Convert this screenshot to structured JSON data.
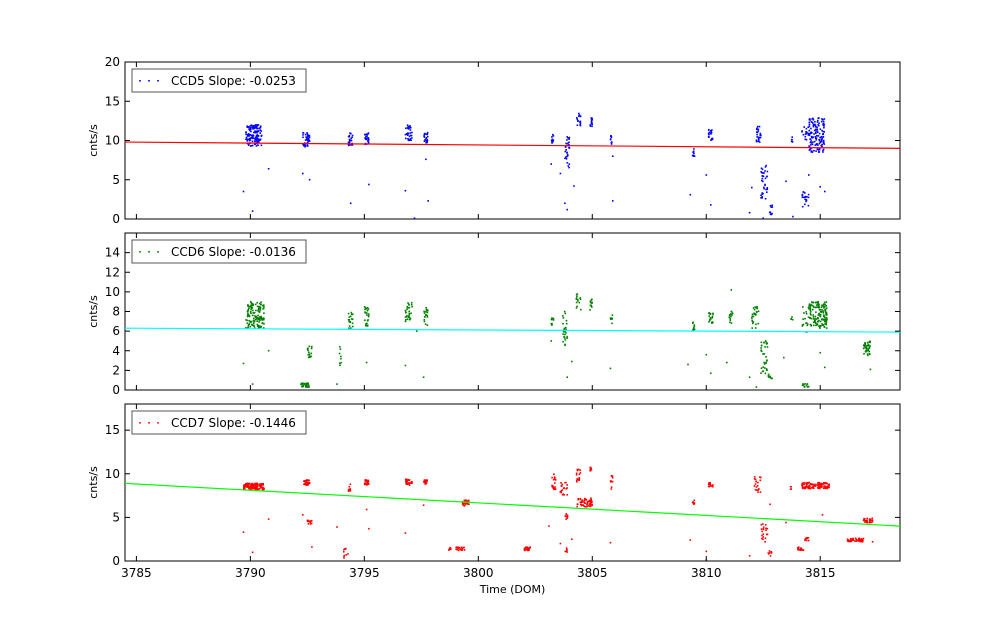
{
  "chart_data": [
    {
      "type": "scatter",
      "name": "ccd5",
      "ylabel": "cnts/s",
      "ylim": [
        0,
        20
      ],
      "yticks": [
        0,
        5,
        10,
        15,
        20
      ],
      "xlim": [
        3784.5,
        3818.5
      ],
      "legend": "CCD5 Slope: -0.0253",
      "legend_position": "top-left",
      "point_color": "#0000ff",
      "fit_color": "#ff0000",
      "fit": {
        "x": [
          3784.5,
          3818.5
        ],
        "y": [
          9.8,
          9.0
        ]
      },
      "clusters": [
        {
          "x": [
            3789.8,
            3790.5
          ],
          "y": [
            9.3,
            12.0
          ],
          "n": 140
        },
        {
          "x": [
            3792.3,
            3792.6
          ],
          "y": [
            9.2,
            11.0
          ],
          "n": 40
        },
        {
          "x": [
            3794.3,
            3794.5
          ],
          "y": [
            9.3,
            11.0
          ],
          "n": 25
        },
        {
          "x": [
            3795.0,
            3795.2
          ],
          "y": [
            9.5,
            11.0
          ],
          "n": 25
        },
        {
          "x": [
            3796.8,
            3797.1
          ],
          "y": [
            10.0,
            12.0
          ],
          "n": 30
        },
        {
          "x": [
            3797.6,
            3797.8
          ],
          "y": [
            9.7,
            11.0
          ],
          "n": 20
        },
        {
          "x": [
            3803.2,
            3803.3
          ],
          "y": [
            9.5,
            11.0
          ],
          "n": 10
        },
        {
          "x": [
            3803.8,
            3804.0
          ],
          "y": [
            6.5,
            10.5
          ],
          "n": 30
        },
        {
          "x": [
            3804.3,
            3804.5
          ],
          "y": [
            11.8,
            13.5
          ],
          "n": 15
        },
        {
          "x": [
            3804.9,
            3805.0
          ],
          "y": [
            11.8,
            13.0
          ],
          "n": 15
        },
        {
          "x": [
            3805.8,
            3805.9
          ],
          "y": [
            9.5,
            10.8
          ],
          "n": 8
        },
        {
          "x": [
            3809.4,
            3809.5
          ],
          "y": [
            7.8,
            9.0
          ],
          "n": 10
        },
        {
          "x": [
            3810.1,
            3810.3
          ],
          "y": [
            10.0,
            11.5
          ],
          "n": 20
        },
        {
          "x": [
            3812.2,
            3812.4
          ],
          "y": [
            9.8,
            12.0
          ],
          "n": 25
        },
        {
          "x": [
            3812.4,
            3812.7
          ],
          "y": [
            2.5,
            7.0
          ],
          "n": 35
        },
        {
          "x": [
            3812.7,
            3812.9
          ],
          "y": [
            0.5,
            1.8
          ],
          "n": 10
        },
        {
          "x": [
            3813.7,
            3813.8
          ],
          "y": [
            9.5,
            10.5
          ],
          "n": 5
        },
        {
          "x": [
            3814.2,
            3814.5
          ],
          "y": [
            1.5,
            3.5
          ],
          "n": 20
        },
        {
          "x": [
            3814.2,
            3814.5
          ],
          "y": [
            10.0,
            12.0
          ],
          "n": 15
        },
        {
          "x": [
            3814.5,
            3815.2
          ],
          "y": [
            8.5,
            13.0
          ],
          "n": 140
        }
      ],
      "outliers": [
        [
          3789.7,
          3.5
        ],
        [
          3790.1,
          1.0
        ],
        [
          3790.8,
          6.4
        ],
        [
          3792.3,
          5.8
        ],
        [
          3792.6,
          5.0
        ],
        [
          3794.4,
          2.0
        ],
        [
          3795.2,
          4.4
        ],
        [
          3796.8,
          3.6
        ],
        [
          3797.2,
          0.1
        ],
        [
          3797.7,
          7.6
        ],
        [
          3797.8,
          2.3
        ],
        [
          3803.2,
          7.0
        ],
        [
          3803.6,
          5.8
        ],
        [
          3803.8,
          2.0
        ],
        [
          3803.9,
          1.2
        ],
        [
          3804.2,
          4.2
        ],
        [
          3805.9,
          8.0
        ],
        [
          3805.9,
          2.3
        ],
        [
          3809.3,
          3.1
        ],
        [
          3810.0,
          5.6
        ],
        [
          3810.2,
          1.8
        ],
        [
          3811.9,
          0.8
        ],
        [
          3812.0,
          4.0
        ],
        [
          3812.5,
          0.1
        ],
        [
          3813.5,
          4.8
        ],
        [
          3813.8,
          0.3
        ],
        [
          3814.5,
          5.6
        ],
        [
          3815.0,
          4.1
        ],
        [
          3815.2,
          3.5
        ]
      ]
    },
    {
      "type": "scatter",
      "name": "ccd6",
      "ylabel": "cnts/s",
      "ylim": [
        0,
        16
      ],
      "yticks": [
        0,
        2,
        4,
        6,
        8,
        10,
        12,
        14
      ],
      "xlim": [
        3784.5,
        3818.5
      ],
      "legend": "CCD6 Slope: -0.0136",
      "legend_position": "top-left",
      "point_color": "#008000",
      "fit_color": "#00ffff",
      "fit": {
        "x": [
          3784.5,
          3818.5
        ],
        "y": [
          6.3,
          5.9
        ]
      },
      "clusters": [
        {
          "x": [
            3789.8,
            3790.6
          ],
          "y": [
            6.3,
            9.0
          ],
          "n": 140
        },
        {
          "x": [
            3792.2,
            3792.6
          ],
          "y": [
            0.3,
            0.7
          ],
          "n": 30
        },
        {
          "x": [
            3792.5,
            3792.7
          ],
          "y": [
            3.3,
            4.5
          ],
          "n": 15
        },
        {
          "x": [
            3793.9,
            3794.0
          ],
          "y": [
            2.5,
            4.5
          ],
          "n": 8
        },
        {
          "x": [
            3794.3,
            3794.5
          ],
          "y": [
            6.3,
            8.0
          ],
          "n": 20
        },
        {
          "x": [
            3795.0,
            3795.2
          ],
          "y": [
            6.5,
            8.5
          ],
          "n": 25
        },
        {
          "x": [
            3796.8,
            3797.1
          ],
          "y": [
            6.8,
            9.0
          ],
          "n": 30
        },
        {
          "x": [
            3797.6,
            3797.8
          ],
          "y": [
            6.5,
            8.5
          ],
          "n": 20
        },
        {
          "x": [
            3803.2,
            3803.3
          ],
          "y": [
            6.0,
            7.5
          ],
          "n": 10
        },
        {
          "x": [
            3803.7,
            3803.9
          ],
          "y": [
            4.5,
            8.0
          ],
          "n": 25
        },
        {
          "x": [
            3804.3,
            3804.5
          ],
          "y": [
            8.0,
            10.0
          ],
          "n": 15
        },
        {
          "x": [
            3804.9,
            3805.0
          ],
          "y": [
            8.0,
            9.3
          ],
          "n": 12
        },
        {
          "x": [
            3805.8,
            3805.9
          ],
          "y": [
            6.5,
            7.8
          ],
          "n": 8
        },
        {
          "x": [
            3809.4,
            3809.5
          ],
          "y": [
            6.0,
            7.5
          ],
          "n": 10
        },
        {
          "x": [
            3810.1,
            3810.3
          ],
          "y": [
            6.8,
            8.0
          ],
          "n": 20
        },
        {
          "x": [
            3811.0,
            3811.2
          ],
          "y": [
            6.8,
            8.0
          ],
          "n": 15
        },
        {
          "x": [
            3812.0,
            3812.3
          ],
          "y": [
            6.3,
            8.5
          ],
          "n": 30
        },
        {
          "x": [
            3812.4,
            3812.7
          ],
          "y": [
            1.5,
            5.0
          ],
          "n": 35
        },
        {
          "x": [
            3812.7,
            3812.9
          ],
          "y": [
            1.0,
            1.6
          ],
          "n": 8
        },
        {
          "x": [
            3813.7,
            3813.8
          ],
          "y": [
            7.0,
            7.5
          ],
          "n": 4
        },
        {
          "x": [
            3814.2,
            3814.5
          ],
          "y": [
            0.3,
            0.7
          ],
          "n": 12
        },
        {
          "x": [
            3814.2,
            3814.5
          ],
          "y": [
            6.5,
            8.5
          ],
          "n": 15
        },
        {
          "x": [
            3814.5,
            3815.3
          ],
          "y": [
            6.3,
            9.0
          ],
          "n": 140
        },
        {
          "x": [
            3816.9,
            3817.2
          ],
          "y": [
            3.5,
            5.0
          ],
          "n": 40
        }
      ],
      "outliers": [
        [
          3789.7,
          2.7
        ],
        [
          3790.1,
          0.6
        ],
        [
          3790.8,
          4.0
        ],
        [
          3793.8,
          0.6
        ],
        [
          3795.1,
          2.8
        ],
        [
          3796.8,
          2.5
        ],
        [
          3797.6,
          1.3
        ],
        [
          3797.3,
          6.0
        ],
        [
          3803.2,
          5.0
        ],
        [
          3803.9,
          1.3
        ],
        [
          3804.1,
          2.9
        ],
        [
          3805.8,
          2.2
        ],
        [
          3809.2,
          2.6
        ],
        [
          3810.0,
          3.6
        ],
        [
          3810.2,
          1.7
        ],
        [
          3810.9,
          2.8
        ],
        [
          3811.1,
          10.2
        ],
        [
          3811.9,
          1.3
        ],
        [
          3812.2,
          0.3
        ],
        [
          3813.4,
          3.3
        ],
        [
          3814.4,
          5.9
        ],
        [
          3815.0,
          3.8
        ],
        [
          3815.2,
          2.3
        ],
        [
          3817.2,
          2.1
        ]
      ]
    },
    {
      "type": "scatter",
      "name": "ccd7",
      "ylabel": "cnts/s",
      "ylim": [
        0,
        18
      ],
      "yticks": [
        0,
        5,
        10,
        15
      ],
      "xlim": [
        3784.5,
        3818.5
      ],
      "xticks": [
        3785,
        3790,
        3795,
        3800,
        3805,
        3810,
        3815
      ],
      "xlabel": "Time (DOM)",
      "legend": "CCD7 Slope: -0.1446",
      "legend_position": "top-left",
      "point_color": "#ff0000",
      "fit_color": "#00ff00",
      "fit": {
        "x": [
          3784.5,
          3818.5
        ],
        "y": [
          8.9,
          4.0
        ]
      },
      "clusters": [
        {
          "x": [
            3789.7,
            3790.6
          ],
          "y": [
            8.2,
            8.9
          ],
          "n": 140
        },
        {
          "x": [
            3792.3,
            3792.6
          ],
          "y": [
            8.7,
            9.3
          ],
          "n": 40
        },
        {
          "x": [
            3792.5,
            3792.7
          ],
          "y": [
            4.2,
            4.7
          ],
          "n": 15
        },
        {
          "x": [
            3794.1,
            3794.3
          ],
          "y": [
            0.2,
            1.5
          ],
          "n": 10
        },
        {
          "x": [
            3794.3,
            3794.4
          ],
          "y": [
            8.0,
            8.8
          ],
          "n": 10
        },
        {
          "x": [
            3795.0,
            3795.2
          ],
          "y": [
            8.7,
            9.3
          ],
          "n": 25
        },
        {
          "x": [
            3796.8,
            3797.1
          ],
          "y": [
            8.7,
            9.4
          ],
          "n": 30
        },
        {
          "x": [
            3797.6,
            3797.8
          ],
          "y": [
            8.8,
            9.3
          ],
          "n": 20
        },
        {
          "x": [
            3798.7,
            3798.8
          ],
          "y": [
            1.2,
            1.6
          ],
          "n": 6
        },
        {
          "x": [
            3799.0,
            3799.4
          ],
          "y": [
            1.2,
            1.6
          ],
          "n": 20
        },
        {
          "x": [
            3799.3,
            3799.6
          ],
          "y": [
            6.3,
            7.0
          ],
          "n": 25
        },
        {
          "x": [
            3802.0,
            3802.3
          ],
          "y": [
            1.2,
            1.6
          ],
          "n": 20
        },
        {
          "x": [
            3803.2,
            3803.4
          ],
          "y": [
            8.0,
            10.0
          ],
          "n": 20
        },
        {
          "x": [
            3803.6,
            3803.9
          ],
          "y": [
            7.5,
            9.0
          ],
          "n": 20
        },
        {
          "x": [
            3803.8,
            3803.9
          ],
          "y": [
            0.5,
            1.5
          ],
          "n": 6
        },
        {
          "x": [
            3803.8,
            3804.0
          ],
          "y": [
            4.8,
            5.5
          ],
          "n": 8
        },
        {
          "x": [
            3804.3,
            3804.5
          ],
          "y": [
            9.0,
            10.5
          ],
          "n": 15
        },
        {
          "x": [
            3804.3,
            3805.0
          ],
          "y": [
            6.2,
            7.2
          ],
          "n": 60
        },
        {
          "x": [
            3804.9,
            3805.0
          ],
          "y": [
            10.2,
            10.8
          ],
          "n": 8
        },
        {
          "x": [
            3805.8,
            3805.9
          ],
          "y": [
            8.0,
            9.8
          ],
          "n": 10
        },
        {
          "x": [
            3809.4,
            3809.5
          ],
          "y": [
            6.3,
            7.0
          ],
          "n": 6
        },
        {
          "x": [
            3810.1,
            3810.3
          ],
          "y": [
            8.5,
            9.0
          ],
          "n": 15
        },
        {
          "x": [
            3812.1,
            3812.4
          ],
          "y": [
            7.8,
            9.7
          ],
          "n": 20
        },
        {
          "x": [
            3812.4,
            3812.7
          ],
          "y": [
            2.2,
            4.5
          ],
          "n": 20
        },
        {
          "x": [
            3812.7,
            3812.9
          ],
          "y": [
            0.5,
            1.3
          ],
          "n": 8
        },
        {
          "x": [
            3813.7,
            3813.8
          ],
          "y": [
            8.0,
            8.6
          ],
          "n": 4
        },
        {
          "x": [
            3814.0,
            3814.3
          ],
          "y": [
            1.2,
            1.6
          ],
          "n": 15
        },
        {
          "x": [
            3814.3,
            3814.5
          ],
          "y": [
            2.3,
            2.7
          ],
          "n": 8
        },
        {
          "x": [
            3814.2,
            3815.4
          ],
          "y": [
            8.3,
            9.0
          ],
          "n": 120
        },
        {
          "x": [
            3816.2,
            3816.9
          ],
          "y": [
            2.2,
            2.6
          ],
          "n": 60
        },
        {
          "x": [
            3816.9,
            3817.3
          ],
          "y": [
            4.4,
            4.9
          ],
          "n": 30
        }
      ],
      "outliers": [
        [
          3789.7,
          3.3
        ],
        [
          3790.1,
          1.0
        ],
        [
          3790.8,
          4.8
        ],
        [
          3792.3,
          5.3
        ],
        [
          3792.7,
          1.6
        ],
        [
          3793.8,
          3.9
        ],
        [
          3795.1,
          5.9
        ],
        [
          3795.2,
          3.7
        ],
        [
          3796.8,
          3.2
        ],
        [
          3797.6,
          6.4
        ],
        [
          3803.1,
          4.0
        ],
        [
          3803.6,
          2.0
        ],
        [
          3804.1,
          2.5
        ],
        [
          3805.8,
          2.1
        ],
        [
          3809.3,
          2.4
        ],
        [
          3810.0,
          1.1
        ],
        [
          3810.0,
          0.1
        ],
        [
          3811.9,
          0.6
        ],
        [
          3812.8,
          6.5
        ],
        [
          3813.5,
          4.4
        ],
        [
          3815.1,
          5.3
        ],
        [
          3817.3,
          2.2
        ]
      ]
    }
  ]
}
